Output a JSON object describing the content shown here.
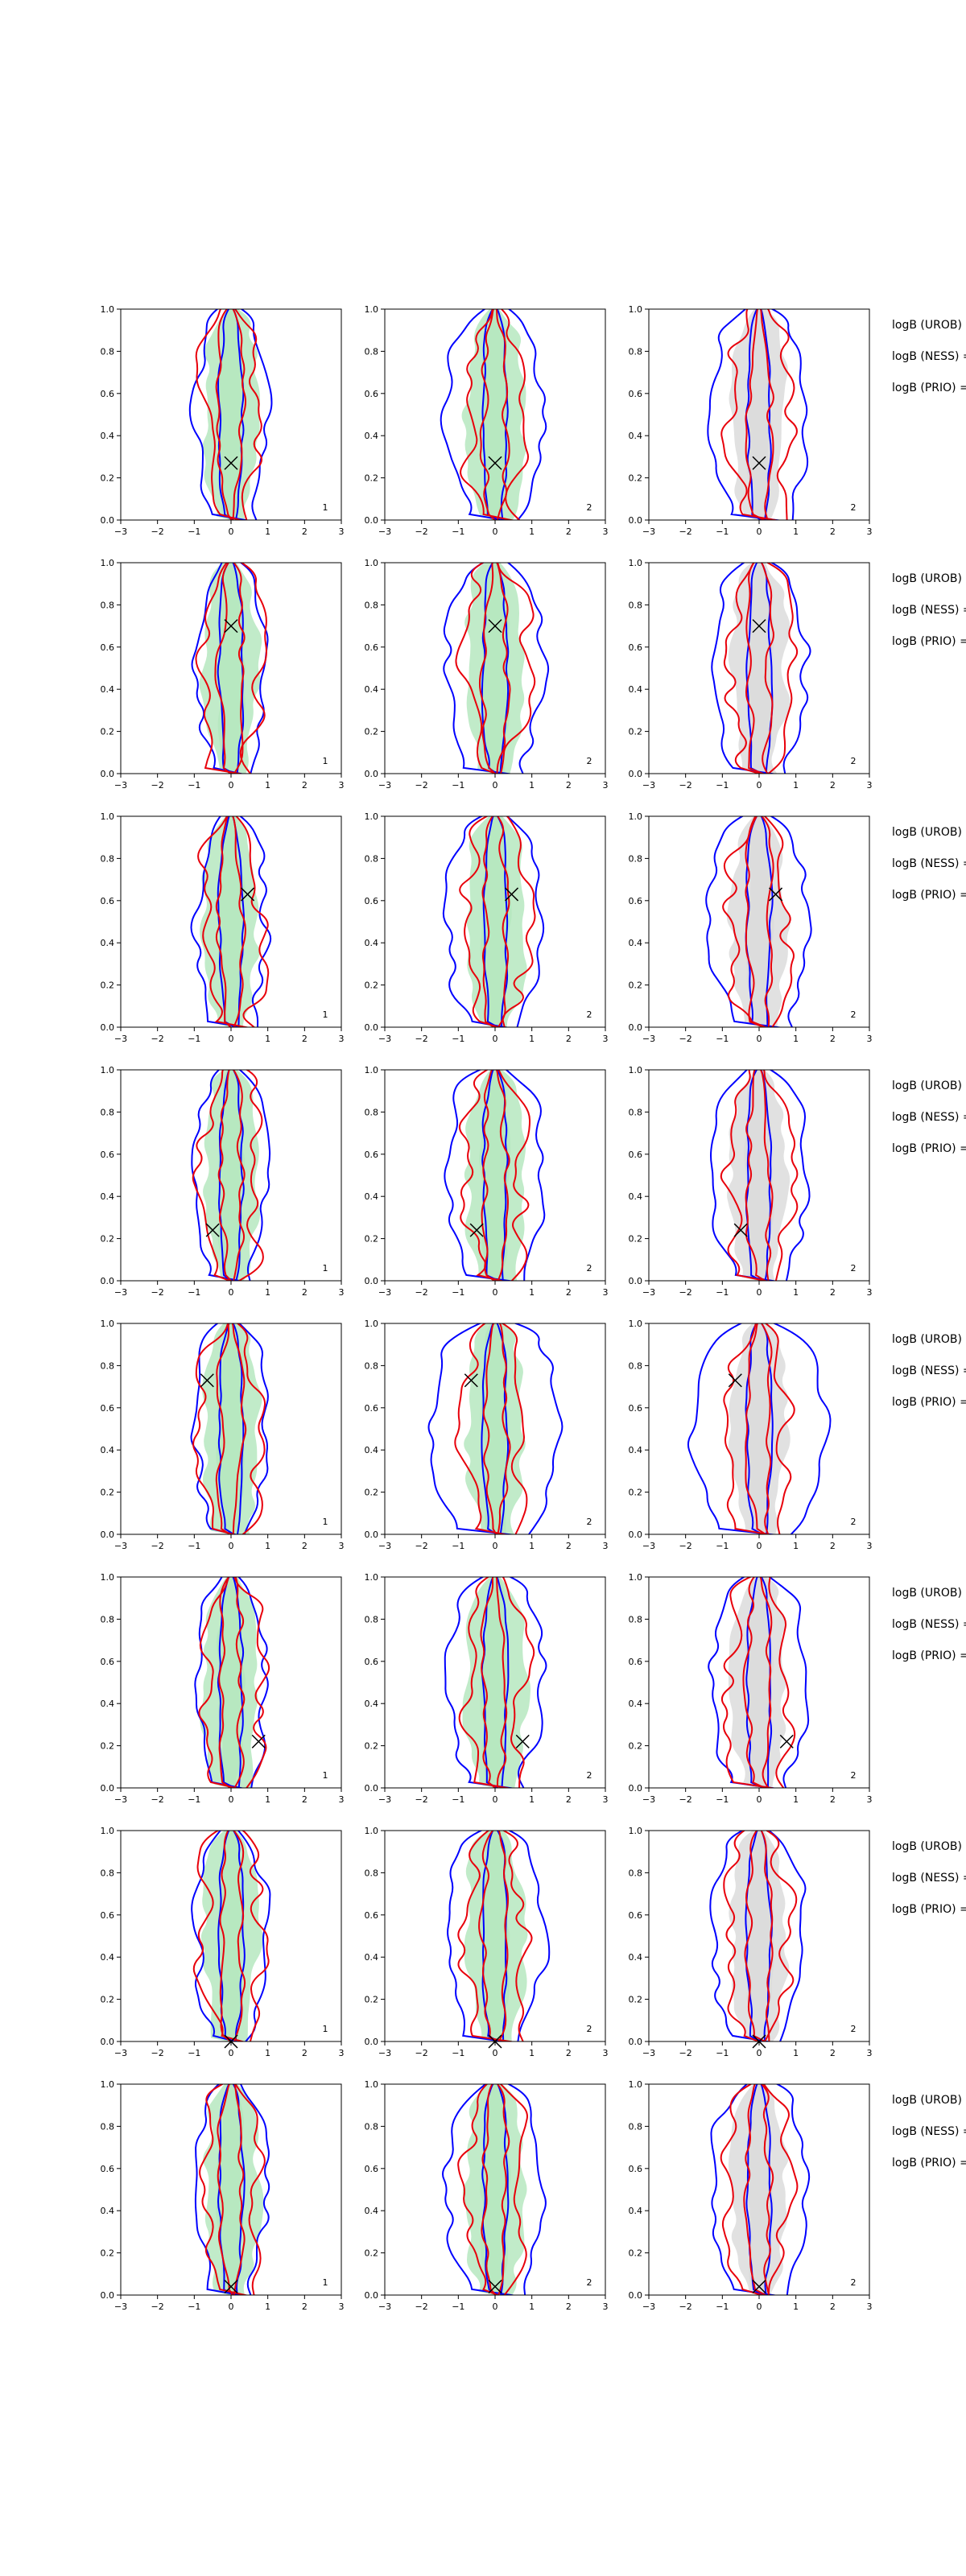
{
  "chart_data": {
    "type": "contour",
    "layout": {
      "rows": 8,
      "cols": 3
    },
    "axes": {
      "xlim": [
        -3,
        3
      ],
      "ylim": [
        0,
        1
      ],
      "xticks": [
        "−3",
        "−2",
        "−1",
        "0",
        "1",
        "2",
        "3"
      ],
      "yticks": [
        "0.0",
        "0.2",
        "0.4",
        "0.6",
        "0.8",
        "1.0"
      ]
    },
    "colors": {
      "blue_contour": "#0000ff",
      "red_contour": "#e8000b",
      "green_fill": "#b6e8bf",
      "gray_fill": "#dcdcdc",
      "marker": "#000000"
    },
    "panel_labels": [
      "1",
      "2",
      "2"
    ],
    "row_text": [
      "logB (UROB) =",
      "logB (NESS) =",
      "logB (PRIO) ="
    ],
    "markers": [
      {
        "x": 0.0,
        "y": 0.27
      },
      {
        "x": 0.0,
        "y": 0.7
      },
      {
        "x": 0.45,
        "y": 0.63
      },
      {
        "x": -0.5,
        "y": 0.24
      },
      {
        "x": -0.65,
        "y": 0.73
      },
      {
        "x": 0.75,
        "y": 0.22
      },
      {
        "x": 0.0,
        "y": 0.0
      },
      {
        "x": 0.0,
        "y": 0.04
      }
    ]
  }
}
